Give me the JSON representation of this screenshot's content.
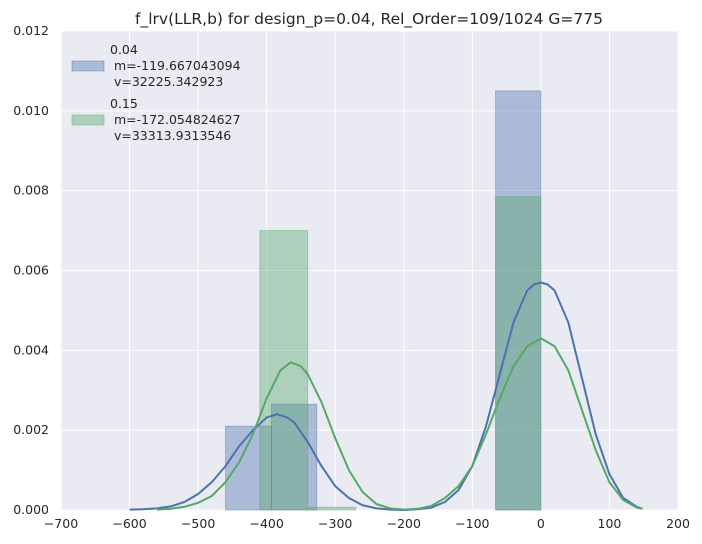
{
  "chart_data": {
    "type": "bar",
    "title": "f_lrv(LLR,b) for design_p=0.04, Rel_Order=109/1024 G=775",
    "xlabel": "",
    "ylabel": "",
    "xlim": [
      -700,
      200
    ],
    "ylim": [
      0,
      0.012
    ],
    "xticks": [
      -700,
      -600,
      -500,
      -400,
      -300,
      -200,
      -100,
      0,
      100,
      200
    ],
    "xtick_labels": [
      "−700",
      "−600",
      "−500",
      "−400",
      "−300",
      "−200",
      "−100",
      "0",
      "100",
      "200"
    ],
    "yticks": [
      0,
      0.002,
      0.004,
      0.006,
      0.008,
      0.01,
      0.012
    ],
    "ytick_labels": [
      "0.000",
      "0.002",
      "0.004",
      "0.006",
      "0.008",
      "0.010",
      "0.012"
    ],
    "grid": true,
    "legend_position": "top-left",
    "series": [
      {
        "name": "0.04",
        "legend_lines": [
          "0.04",
          " m=-119.667043094",
          " v=32225.342923"
        ],
        "color": "#4C72B0",
        "bar_color": "#A1B1D4",
        "bins": [
          {
            "x0": -460,
            "x1": -393,
            "height": 0.0021
          },
          {
            "x0": -393,
            "x1": -327,
            "height": 0.00265
          },
          {
            "x0": -66,
            "x1": 0,
            "height": 0.0105
          }
        ],
        "kde": {
          "x": [
            -600,
            -580,
            -560,
            -540,
            -520,
            -500,
            -480,
            -460,
            -440,
            -420,
            -400,
            -385,
            -370,
            -360,
            -340,
            -320,
            -300,
            -280,
            -260,
            -240,
            -220,
            -200,
            -180,
            -160,
            -140,
            -120,
            -100,
            -80,
            -60,
            -40,
            -20,
            -10,
            0,
            10,
            20,
            40,
            60,
            80,
            100,
            120,
            140,
            148
          ],
          "y": [
            1e-05,
            2e-05,
            4e-05,
            9e-05,
            0.0002,
            0.0004,
            0.0007,
            0.0011,
            0.0016,
            0.002,
            0.00232,
            0.0024,
            0.00232,
            0.0022,
            0.0017,
            0.0011,
            0.0006,
            0.0003,
            0.00012,
            4e-05,
            1e-05,
            0.0,
            2e-05,
            6e-05,
            0.0002,
            0.0005,
            0.0011,
            0.0021,
            0.0034,
            0.0047,
            0.0055,
            0.00565,
            0.0057,
            0.00565,
            0.0055,
            0.0047,
            0.0033,
            0.0019,
            0.0009,
            0.0003,
            8e-05,
            3e-05
          ]
        }
      },
      {
        "name": "0.15",
        "legend_lines": [
          "0.15",
          " m=-172.054824627",
          " v=33313.9313546"
        ],
        "color": "#55A868",
        "bar_color": "#A8D2B2",
        "bins": [
          {
            "x0": -410,
            "x1": -340,
            "height": 0.007
          },
          {
            "x0": -340,
            "x1": -270,
            "height": 7e-05
          },
          {
            "x0": -66,
            "x1": 0,
            "height": 0.00785
          }
        ],
        "kde": {
          "x": [
            -560,
            -540,
            -520,
            -500,
            -480,
            -460,
            -440,
            -420,
            -400,
            -380,
            -365,
            -350,
            -340,
            -320,
            -300,
            -280,
            -260,
            -240,
            -220,
            -200,
            -180,
            -160,
            -140,
            -120,
            -100,
            -80,
            -60,
            -40,
            -20,
            0,
            20,
            40,
            60,
            80,
            100,
            120,
            140,
            148
          ],
          "y": [
            1e-05,
            3e-05,
            8e-05,
            0.00018,
            0.00035,
            0.0007,
            0.0012,
            0.0019,
            0.0028,
            0.0035,
            0.0037,
            0.0036,
            0.0034,
            0.0027,
            0.0018,
            0.001,
            0.00045,
            0.00015,
            4e-05,
            1e-05,
            3e-05,
            0.0001,
            0.0003,
            0.0006,
            0.0011,
            0.0019,
            0.0028,
            0.0036,
            0.0041,
            0.0043,
            0.0041,
            0.0035,
            0.0025,
            0.0015,
            0.0007,
            0.00025,
            6e-05,
            3e-05
          ]
        }
      }
    ]
  }
}
